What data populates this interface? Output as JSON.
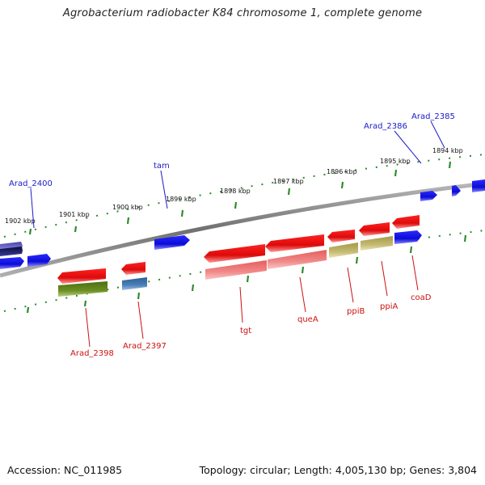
{
  "title": "Agrobacterium radiobacter K84 chromosome 1, complete genome",
  "footer": {
    "accession": "Accession: NC_011985",
    "topology": "Topology: circular; Length: 4,005,130 bp; Genes: 3,804"
  },
  "colors": {
    "backbone": "#8a8a8a",
    "ticks": "#2e8b2e",
    "forward_gene": "#1010ee",
    "reverse_gene": "#ee1111",
    "label_forward": "#1a1ac8",
    "label_reverse": "#cc1111"
  },
  "kbp_labels": [
    "1902 kbp",
    "1901 kbp",
    "1900 kbp",
    "1899 kbp",
    "1898 kbp",
    "1897 kbp",
    "1896 kbp",
    "1895 kbp",
    "1894 kbp"
  ],
  "gene_labels": {
    "forward": [
      "Arad_2400",
      "tam",
      "Arad_2386",
      "Arad_2385"
    ],
    "reverse": [
      "Arad_2398",
      "Arad_2397",
      "tgt",
      "queA",
      "ppiB",
      "ppiA",
      "coaD"
    ]
  }
}
